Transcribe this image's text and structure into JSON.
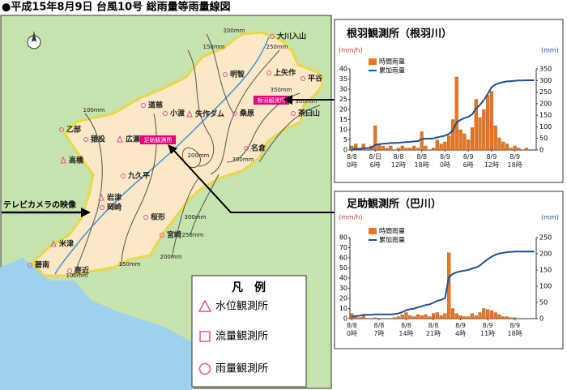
{
  "title": "●平成15年8月9日 台風10号 総雨量等雨量線図",
  "map": {
    "places": [
      "明智",
      "上矢作",
      "平谷",
      "茶臼山",
      "大川入山",
      "小渡",
      "矢作ダム",
      "桑原",
      "道慈",
      "乙部",
      "猿投",
      "広瀬",
      "高橋",
      "九久平",
      "岩津",
      "岡崎",
      "桜形",
      "宮崎",
      "米津",
      "碧南",
      "寄近",
      "名倉"
    ],
    "isohyets": [
      "200mm",
      "150mm",
      "250mm",
      "350mm",
      "300mm",
      "100mm",
      "200mm",
      "350mm",
      "300mm",
      "250mm",
      "200mm",
      "150mm",
      "100mm"
    ],
    "stations": [
      "根羽観測所",
      "足助観測所"
    ],
    "camera": "テレビカメラの映像"
  },
  "legend": {
    "title": "凡　例",
    "items": [
      "水位観測所",
      "流量観測所",
      "雨量観測所"
    ]
  },
  "chart_data": [
    {
      "type": "bar",
      "title": "根羽観測所（根羽川）",
      "y_label": "(mm/h)",
      "y2_label": "(mm)",
      "categories": [
        "8/8\n0時",
        null,
        null,
        null,
        null,
        null,
        "8/日\n6時",
        null,
        null,
        null,
        null,
        null,
        "8/8\n12時",
        null,
        null,
        null,
        null,
        null,
        "8/8\n18時",
        null,
        null,
        null,
        null,
        null,
        "8/9\n0時",
        null,
        null,
        null,
        null,
        null,
        "8/9\n6時",
        null,
        null,
        null,
        null,
        null,
        "8/9\n12時",
        null,
        null,
        null,
        null,
        null,
        "8/9\n18時",
        null,
        null,
        null,
        null,
        null
      ],
      "series": [
        {
          "name": "時間雨量",
          "type": "bar",
          "color": "#e87722",
          "values": [
            2,
            3,
            0,
            3,
            0,
            2,
            12,
            3,
            2,
            1,
            2,
            0,
            1,
            2,
            1,
            1,
            2,
            1,
            9,
            2,
            0,
            1,
            5,
            3,
            4,
            7,
            15,
            36,
            10,
            8,
            5,
            11,
            25,
            16,
            20,
            27,
            29,
            12,
            6,
            4,
            3,
            1,
            2,
            1,
            0,
            1,
            0,
            0
          ]
        },
        {
          "name": "累加雨量",
          "type": "line",
          "axis": "y2",
          "color": "#1f4e9e",
          "values": [
            2,
            5,
            5,
            8,
            8,
            10,
            22,
            25,
            27,
            28,
            30,
            30,
            31,
            33,
            34,
            35,
            37,
            38,
            47,
            49,
            49,
            50,
            55,
            58,
            62,
            69,
            84,
            120,
            130,
            138,
            143,
            154,
            179,
            195,
            215,
            242,
            271,
            283,
            289,
            293,
            296,
            297,
            299,
            300,
            300,
            301,
            301,
            301
          ]
        }
      ],
      "ylim": [
        0,
        40
      ],
      "yticks": [
        0,
        5,
        10,
        15,
        20,
        25,
        30,
        35,
        40
      ],
      "y2lim": [
        0,
        350
      ],
      "y2ticks": [
        0,
        50,
        100,
        150,
        200,
        250,
        300,
        350
      ]
    },
    {
      "type": "bar",
      "title": "足助観測所（巴川）",
      "y_label": "(mm/h)",
      "y2_label": "(mm)",
      "categories": [
        "8/8\n0時",
        null,
        null,
        null,
        null,
        null,
        null,
        "8/8\n7時",
        null,
        null,
        null,
        null,
        null,
        null,
        "8/8\n14時",
        null,
        null,
        null,
        null,
        null,
        null,
        "8/8\n21時",
        null,
        null,
        null,
        null,
        null,
        null,
        "8/9\n4時",
        null,
        null,
        null,
        null,
        null,
        null,
        "8/9\n11時",
        null,
        null,
        null,
        null,
        null,
        null,
        "8/9\n18時",
        null,
        null,
        null,
        null,
        null
      ],
      "series": [
        {
          "name": "時間雨量",
          "type": "bar",
          "color": "#e87722",
          "values": [
            5,
            3,
            1,
            3,
            0,
            0,
            1,
            0,
            0,
            0,
            0,
            1,
            2,
            4,
            6,
            3,
            2,
            4,
            3,
            4,
            2,
            5,
            6,
            3,
            5,
            65,
            10,
            5,
            3,
            2,
            2,
            5,
            3,
            6,
            10,
            9,
            8,
            6,
            4,
            2,
            2,
            1,
            1,
            0,
            0,
            0,
            0,
            0
          ]
        },
        {
          "name": "累加雨量",
          "type": "line",
          "axis": "y2",
          "color": "#1f4e9e",
          "values": [
            5,
            8,
            9,
            12,
            12,
            12,
            13,
            13,
            13,
            13,
            13,
            14,
            16,
            20,
            26,
            29,
            31,
            35,
            38,
            42,
            44,
            49,
            55,
            58,
            63,
            128,
            138,
            143,
            146,
            148,
            150,
            155,
            158,
            164,
            174,
            183,
            191,
            197,
            201,
            203,
            205,
            206,
            207,
            207,
            207,
            207,
            207,
            207
          ]
        }
      ],
      "ylim": [
        0,
        80
      ],
      "yticks": [
        0,
        10,
        20,
        30,
        40,
        50,
        60,
        70,
        80
      ],
      "y2lim": [
        0,
        250
      ],
      "y2ticks": [
        0,
        50,
        100,
        150,
        200,
        250
      ]
    }
  ]
}
